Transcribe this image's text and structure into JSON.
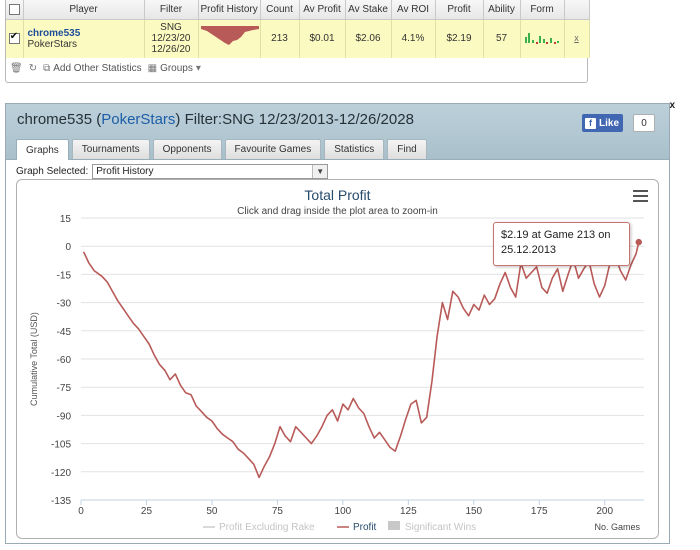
{
  "table": {
    "headers": [
      "Player",
      "Filter",
      "Profit History",
      "Count",
      "Av Profit",
      "Av Stake",
      "Av ROI",
      "Profit",
      "Ability",
      "Form"
    ],
    "row": {
      "player_name": "chrome535",
      "site": "PokerStars",
      "filter_line1": "SNG",
      "filter_line2": "12/23/20",
      "filter_line3": "12/26/20",
      "count": "213",
      "av_profit": "$0.01",
      "av_stake": "$2.06",
      "av_roi": "4.1%",
      "profit": "$2.19",
      "ability": "57",
      "close_label": "x"
    }
  },
  "toolbar": {
    "add_stats_label": "Add Other Statistics",
    "groups_label": "Groups"
  },
  "header": {
    "player_name": "chrome535",
    "site": "PokerStars",
    "filter_text": "Filter:SNG 12/23/2013-12/26/2028",
    "like_label": "Like",
    "like_count": "0",
    "close_label": "x"
  },
  "tabs": [
    {
      "label": "Graphs",
      "active": true
    },
    {
      "label": "Tournaments",
      "active": false
    },
    {
      "label": "Opponents",
      "active": false
    },
    {
      "label": "Favourite Games",
      "active": false
    },
    {
      "label": "Statistics",
      "active": false
    },
    {
      "label": "Find",
      "active": false
    }
  ],
  "graph_select": {
    "label": "Graph Selected:",
    "value": "Profit History"
  },
  "tooltip": {
    "line1": "$2.19 at Game 213 on",
    "line2": "25.12.2013"
  },
  "colors": {
    "profit_line": "#b85a58",
    "excl_rake_line": "#cccccc",
    "sig_wins": "#c8c8c8",
    "header_bg": "#b4cad5",
    "row_highlight": "#fbfac0"
  },
  "chart_data": {
    "type": "line",
    "title": "Total Profit",
    "subtitle": "Click and drag inside the plot area to zoom-in",
    "xlabel": "No. Games",
    "ylabel": "Cumulative Total (USD)",
    "xlim": [
      0,
      215
    ],
    "ylim": [
      -135,
      15
    ],
    "xticks": [
      0,
      25,
      50,
      75,
      100,
      125,
      150,
      175,
      200
    ],
    "yticks": [
      15,
      0,
      -15,
      -30,
      -45,
      -60,
      -75,
      -90,
      -105,
      -120,
      -135
    ],
    "grid": "horizontal",
    "legend_position": "bottom",
    "legend": [
      "Profit Excluding Rake",
      "Profit",
      "Significant Wins"
    ],
    "series": [
      {
        "name": "Profit",
        "x": [
          1,
          3,
          5,
          8,
          10,
          12,
          14,
          16,
          18,
          20,
          22,
          24,
          26,
          28,
          30,
          32,
          34,
          36,
          38,
          40,
          42,
          44,
          46,
          48,
          50,
          52,
          54,
          56,
          58,
          60,
          62,
          64,
          66,
          68,
          70,
          72,
          74,
          76,
          78,
          80,
          82,
          84,
          86,
          88,
          90,
          92,
          94,
          96,
          98,
          100,
          102,
          104,
          106,
          108,
          110,
          112,
          114,
          116,
          118,
          120,
          122,
          124,
          126,
          128,
          130,
          132,
          134,
          136,
          138,
          140,
          142,
          144,
          146,
          148,
          150,
          152,
          154,
          156,
          158,
          160,
          162,
          164,
          166,
          168,
          170,
          172,
          174,
          176,
          178,
          180,
          182,
          184,
          186,
          188,
          190,
          192,
          194,
          196,
          198,
          200,
          202,
          204,
          206,
          208,
          210,
          212,
          213
        ],
        "y": [
          -3,
          -9,
          -13,
          -16,
          -19,
          -24,
          -29,
          -33,
          -37,
          -41,
          -44,
          -48,
          -52,
          -58,
          -63,
          -66,
          -71,
          -68,
          -74,
          -78,
          -79,
          -85,
          -88,
          -91,
          -93,
          -97,
          -100,
          -102,
          -104,
          -108,
          -110,
          -113,
          -116,
          -123,
          -117,
          -112,
          -105,
          -96,
          -101,
          -104,
          -96,
          -99,
          -102,
          -105,
          -101,
          -96,
          -90,
          -87,
          -93,
          -84,
          -87,
          -81,
          -86,
          -89,
          -96,
          -102,
          -99,
          -103,
          -107,
          -109,
          -101,
          -92,
          -84,
          -82,
          -94,
          -91,
          -72,
          -48,
          -30,
          -39,
          -24,
          -27,
          -33,
          -37,
          -31,
          -34,
          -26,
          -31,
          -28,
          -20,
          -14,
          -22,
          -27,
          -9,
          -17,
          -14,
          -11,
          -22,
          -25,
          -17,
          -12,
          -24,
          -15,
          -7,
          -17,
          -12,
          -8,
          -20,
          -27,
          -21,
          -9,
          -5,
          -13,
          -18,
          -10,
          -4,
          2.19
        ]
      }
    ]
  }
}
